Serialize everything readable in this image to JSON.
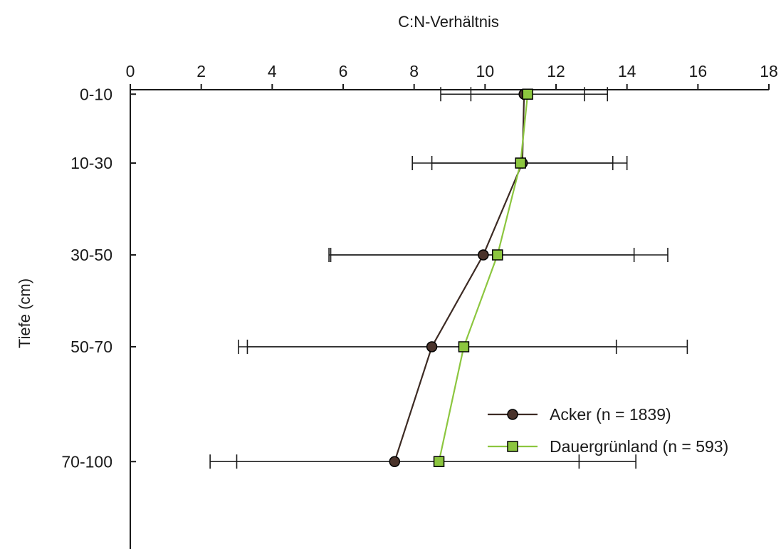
{
  "chart_data": {
    "type": "line",
    "orientation": "depth-profile",
    "xlabel": "C:N-Verhältnis",
    "ylabel": "Tiefe (cm)",
    "xlim": [
      0,
      18
    ],
    "xticks": [
      0,
      2,
      4,
      6,
      8,
      10,
      12,
      14,
      16,
      18
    ],
    "x_axis_position": "top",
    "grid": false,
    "legend_position": "lower-right",
    "categories": [
      "0-10",
      "10-30",
      "30-50",
      "50-70",
      "70-100"
    ],
    "category_depths_cm": [
      5,
      20,
      40,
      60,
      85
    ],
    "ylim": [
      0,
      100
    ],
    "series": [
      {
        "name": "Acker (n = 1839)",
        "marker": "circle",
        "line_color": "#3d2b24",
        "marker_fill": "#4a332b",
        "values": [
          11.1,
          11.05,
          9.95,
          8.5,
          7.45
        ],
        "error_low": [
          8.75,
          7.95,
          5.6,
          3.05,
          2.25
        ],
        "error_high": [
          13.45,
          14.0,
          15.15,
          15.7,
          14.25
        ]
      },
      {
        "name": "Dauergrünland (n = 593)",
        "marker": "square",
        "line_color": "#8cc63f",
        "marker_fill": "#8cc63f",
        "values": [
          11.2,
          11.0,
          10.35,
          9.4,
          8.7
        ],
        "error_low": [
          9.6,
          8.5,
          5.65,
          3.3,
          3.0
        ],
        "error_high": [
          12.8,
          13.6,
          14.2,
          13.7,
          12.65
        ]
      }
    ]
  }
}
